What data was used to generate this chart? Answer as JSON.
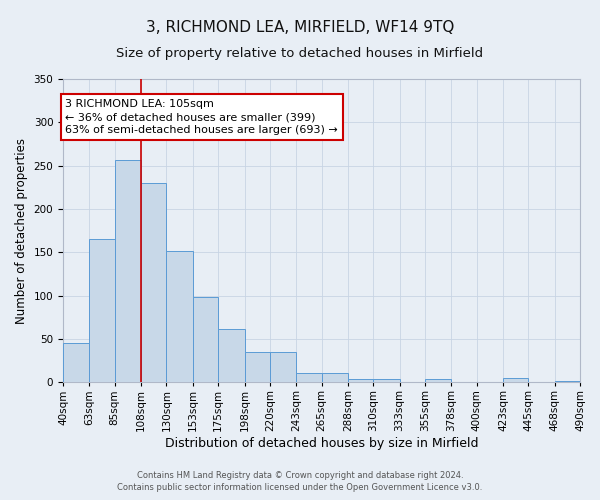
{
  "title": "3, RICHMOND LEA, MIRFIELD, WF14 9TQ",
  "subtitle": "Size of property relative to detached houses in Mirfield",
  "xlabel": "Distribution of detached houses by size in Mirfield",
  "ylabel": "Number of detached properties",
  "bin_edges": [
    40,
    63,
    85,
    108,
    130,
    153,
    175,
    198,
    220,
    243,
    265,
    288,
    310,
    333,
    355,
    378,
    400,
    423,
    445,
    468,
    490
  ],
  "bar_heights": [
    45,
    165,
    257,
    230,
    152,
    98,
    62,
    35,
    35,
    11,
    11,
    4,
    4,
    0,
    4,
    0,
    0,
    5,
    0,
    2
  ],
  "bar_facecolor": "#c8d8e8",
  "bar_edgecolor": "#5b9bd5",
  "property_line_x": 108,
  "property_line_color": "#cc0000",
  "annotation_line1": "3 RICHMOND LEA: 105sqm",
  "annotation_line2": "← 36% of detached houses are smaller (399)",
  "annotation_line3": "63% of semi-detached houses are larger (693) →",
  "annotation_box_edgecolor": "#cc0000",
  "annotation_box_facecolor": "#ffffff",
  "ylim": [
    0,
    350
  ],
  "yticks": [
    0,
    50,
    100,
    150,
    200,
    250,
    300,
    350
  ],
  "grid_color": "#c8d4e4",
  "background_color": "#e8eef5",
  "footer_line1": "Contains HM Land Registry data © Crown copyright and database right 2024.",
  "footer_line2": "Contains public sector information licensed under the Open Government Licence v3.0.",
  "title_fontsize": 11,
  "subtitle_fontsize": 9.5,
  "xlabel_fontsize": 9,
  "ylabel_fontsize": 8.5,
  "annot_fontsize": 8,
  "tick_fontsize": 7.5,
  "footer_fontsize": 6
}
